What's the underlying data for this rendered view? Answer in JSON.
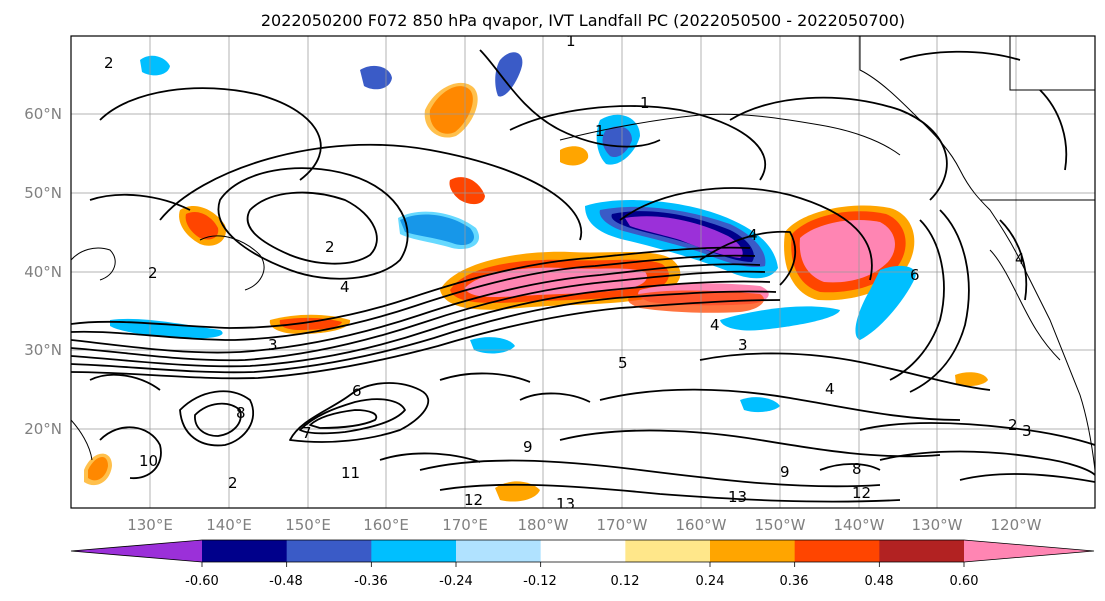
{
  "title": "2022050200 F072 850 hPa qvapor, IVT Landfall PC (2022050500 - 2022050700)",
  "lat_labels": [
    "60°N",
    "50°N",
    "40°N",
    "30°N",
    "20°N"
  ],
  "lon_labels": [
    "130°E",
    "140°E",
    "150°E",
    "160°E",
    "170°E",
    "180°W",
    "170°W",
    "160°W",
    "150°W",
    "140°W",
    "130°W",
    "120°W"
  ],
  "colorbar": {
    "colors": [
      "#9b30d9",
      "#00008b",
      "#3a5bc7",
      "#00bfff",
      "#b0e2ff",
      "#ffffff",
      "#ffe78a",
      "#ffa500",
      "#ff4500",
      "#b22222",
      "#ff85b3"
    ],
    "tick_labels": [
      "-0.60",
      "-0.48",
      "-0.36",
      "-0.24",
      "-0.12",
      "0.12",
      "0.24",
      "0.36",
      "0.48",
      "0.60"
    ]
  },
  "contour_labels": [
    "2",
    "1",
    "2",
    "4",
    "2",
    "3",
    "4",
    "5",
    "6",
    "7",
    "8",
    "9",
    "10",
    "11",
    "12",
    "13",
    "13",
    "12",
    "1",
    "4",
    "3",
    "2",
    "1",
    "4",
    "6",
    "8",
    "9",
    "4",
    "3",
    "2"
  ]
}
